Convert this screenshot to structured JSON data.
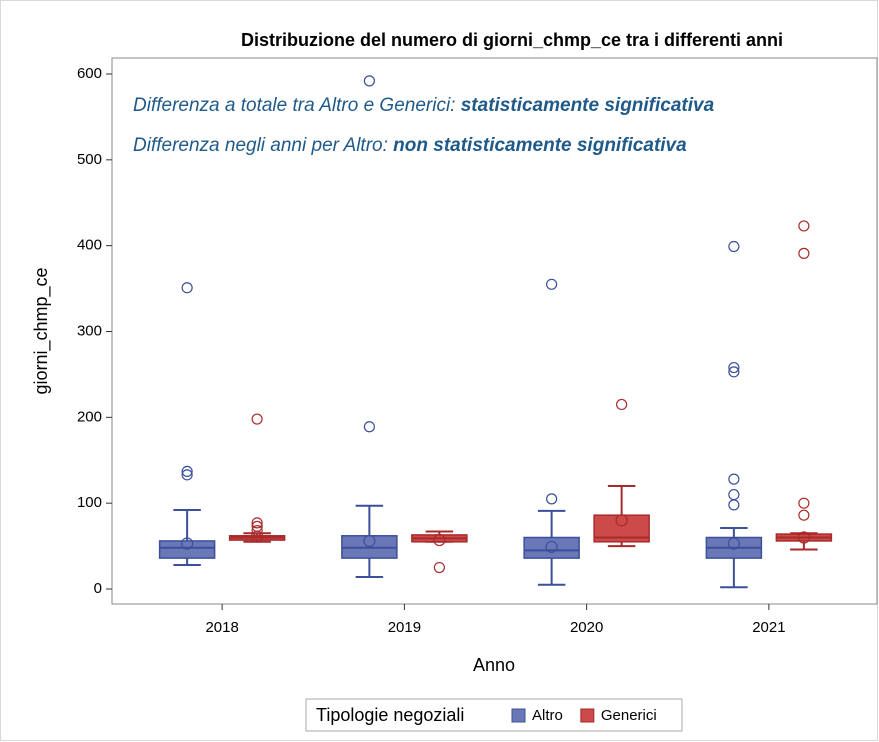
{
  "chart_data": {
    "type": "box",
    "title": "Distribuzione del numero di giorni_chmp_ce tra i differenti anni",
    "x_label": "Anno",
    "y_label": "giorni_chmp_ce",
    "annotations": [
      {
        "text": "Differenza a totale tra Altro e Generici: ",
        "emphasis": "statisticamente significativa"
      },
      {
        "text": "Differenza negli anni per Altro: ",
        "emphasis": "non statisticamente significativa"
      }
    ],
    "legend_title": "Tipologie negoziali",
    "categories": [
      "2018",
      "2019",
      "2020",
      "2021"
    ],
    "ylim": [
      0,
      600
    ],
    "yticks": [
      0,
      100,
      200,
      300,
      400,
      500,
      600
    ],
    "series": [
      {
        "name": "Altro",
        "color": "#6a78b8",
        "edge_color": "#3c4f9a",
        "boxes": [
          {
            "min": 28,
            "q1": 36,
            "median": 48,
            "q3": 56,
            "max": 92,
            "mean": 53,
            "outliers": [
              351,
              137,
              133
            ]
          },
          {
            "min": 14,
            "q1": 36,
            "median": 48,
            "q3": 62,
            "max": 97,
            "mean": 56,
            "outliers": [
              592,
              189
            ]
          },
          {
            "min": 5,
            "q1": 36,
            "median": 45,
            "q3": 60,
            "max": 91,
            "mean": 49,
            "outliers": [
              355,
              105
            ]
          },
          {
            "min": 2,
            "q1": 36,
            "median": 48,
            "q3": 60,
            "max": 71,
            "mean": 53,
            "outliers": [
              399,
              258,
              253,
              128,
              110,
              98
            ]
          }
        ]
      },
      {
        "name": "Generici",
        "color": "#cc4a48",
        "edge_color": "#a82a2a",
        "boxes": [
          {
            "min": 55,
            "q1": 57,
            "median": 60,
            "q3": 62,
            "max": 65,
            "mean": 61,
            "outliers": [
              198,
              77,
              73,
              68
            ]
          },
          {
            "min": 55,
            "q1": 55,
            "median": 59,
            "q3": 63,
            "max": 67,
            "mean": 57,
            "outliers": [
              25
            ]
          },
          {
            "min": 50,
            "q1": 55,
            "median": 60,
            "q3": 86,
            "max": 120,
            "mean": 80,
            "outliers": [
              215
            ]
          },
          {
            "min": 46,
            "q1": 56,
            "median": 60,
            "q3": 64,
            "max": 65,
            "mean": 60,
            "outliers": [
              423,
              391,
              100,
              86
            ]
          }
        ]
      }
    ]
  }
}
